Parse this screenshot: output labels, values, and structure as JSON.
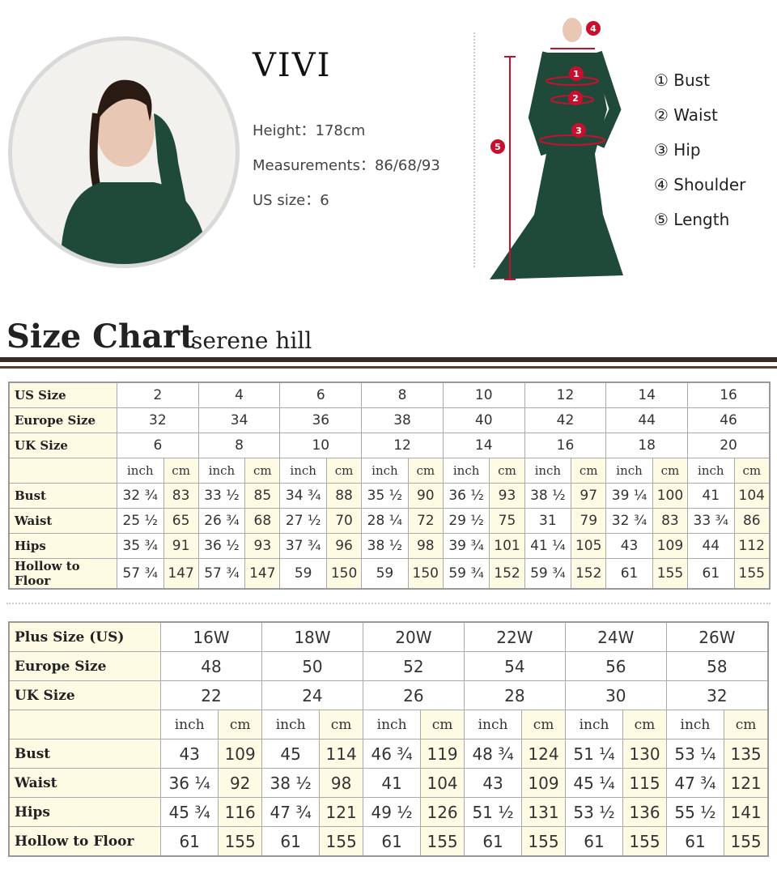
{
  "model": {
    "name": "VIVI",
    "height": "Height：178cm",
    "measurements": "Measurements：86/68/93",
    "us_size": "US size：6"
  },
  "legend": [
    "① Bust",
    "② Waist",
    "③ Hip",
    "④ Shoulder",
    "⑤ Length"
  ],
  "markers": [
    "1",
    "2",
    "3",
    "4",
    "5"
  ],
  "chart": {
    "title": "Size Chart",
    "brand": "serene hill"
  },
  "colors": {
    "dress": "#1f4a3a",
    "marker": "#c8102e",
    "header_bar": "#3a2a22",
    "cell_highlight": "#fdfbe4"
  },
  "table1": {
    "header_rows": [
      {
        "label": "US Size",
        "values": [
          "2",
          "4",
          "6",
          "8",
          "10",
          "12",
          "14",
          "16"
        ]
      },
      {
        "label": "Europe Size",
        "values": [
          "32",
          "34",
          "36",
          "38",
          "40",
          "42",
          "44",
          "46"
        ]
      },
      {
        "label": "UK Size",
        "values": [
          "6",
          "8",
          "10",
          "12",
          "14",
          "16",
          "18",
          "20"
        ]
      }
    ],
    "units": [
      "inch",
      "cm"
    ],
    "rows": [
      {
        "label": "Bust",
        "values": [
          "32 ¾",
          "83",
          "33 ½",
          "85",
          "34 ¾",
          "88",
          "35 ½",
          "90",
          "36 ½",
          "93",
          "38 ½",
          "97",
          "39 ¼",
          "100",
          "41",
          "104"
        ]
      },
      {
        "label": "Waist",
        "values": [
          "25 ½",
          "65",
          "26 ¾",
          "68",
          "27 ½",
          "70",
          "28 ¼",
          "72",
          "29 ½",
          "75",
          "31",
          "79",
          "32 ¾",
          "83",
          "33 ¾",
          "86"
        ]
      },
      {
        "label": "Hips",
        "values": [
          "35 ¾",
          "91",
          "36 ½",
          "93",
          "37 ¾",
          "96",
          "38 ½",
          "98",
          "39 ¾",
          "101",
          "41 ¼",
          "105",
          "43",
          "109",
          "44",
          "112"
        ]
      },
      {
        "label": "Hollow to Floor",
        "values": [
          "57 ¾",
          "147",
          "57 ¾",
          "147",
          "59",
          "150",
          "59",
          "150",
          "59 ¾",
          "152",
          "59 ¾",
          "152",
          "61",
          "155",
          "61",
          "155"
        ]
      }
    ]
  },
  "table2": {
    "header_rows": [
      {
        "label": "Plus Size (US)",
        "values": [
          "16W",
          "18W",
          "20W",
          "22W",
          "24W",
          "26W"
        ]
      },
      {
        "label": "Europe Size",
        "values": [
          "48",
          "50",
          "52",
          "54",
          "56",
          "58"
        ]
      },
      {
        "label": "UK Size",
        "values": [
          "22",
          "24",
          "26",
          "28",
          "30",
          "32"
        ]
      }
    ],
    "units": [
      "inch",
      "cm"
    ],
    "rows": [
      {
        "label": "Bust",
        "values": [
          "43",
          "109",
          "45",
          "114",
          "46 ¾",
          "119",
          "48 ¾",
          "124",
          "51 ¼",
          "130",
          "53 ¼",
          "135"
        ]
      },
      {
        "label": "Waist",
        "values": [
          "36 ¼",
          "92",
          "38 ½",
          "98",
          "41",
          "104",
          "43",
          "109",
          "45 ¼",
          "115",
          "47 ¾",
          "121"
        ]
      },
      {
        "label": "Hips",
        "values": [
          "45 ¾",
          "116",
          "47 ¾",
          "121",
          "49 ½",
          "126",
          "51 ½",
          "131",
          "53 ½",
          "136",
          "55 ½",
          "141"
        ]
      },
      {
        "label": "Hollow to Floor",
        "values": [
          "61",
          "155",
          "61",
          "155",
          "61",
          "155",
          "61",
          "155",
          "61",
          "155",
          "61",
          "155"
        ]
      }
    ]
  }
}
